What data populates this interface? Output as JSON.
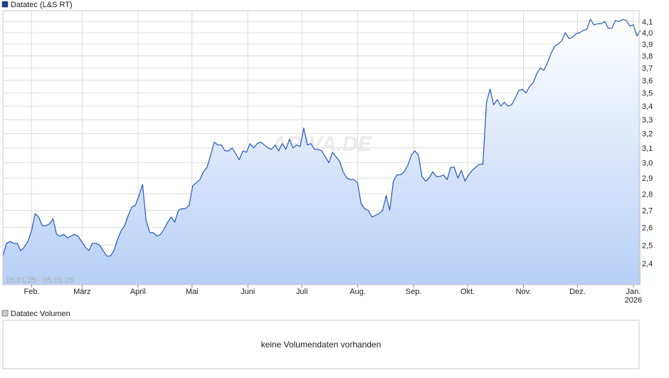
{
  "chart_data": {
    "type": "line",
    "legend": "Datatec (L&S RT)",
    "color": "#2456b8",
    "log_scale": true,
    "grid": true,
    "range_label": "16.01.25 - 05.01.26",
    "watermark": "ARIVA.DE",
    "xlim": [
      "2025-01-16",
      "2026-01-05"
    ],
    "xticks": [
      {
        "value": "2025-02",
        "label": "Feb."
      },
      {
        "value": "2025-03",
        "label": "März"
      },
      {
        "value": "2025-04",
        "label": "April"
      },
      {
        "value": "2025-05",
        "label": "Mai"
      },
      {
        "value": "2025-06",
        "label": "Juni"
      },
      {
        "value": "2025-07",
        "label": "Juli"
      },
      {
        "value": "2025-08",
        "label": "Aug."
      },
      {
        "value": "2025-09",
        "label": "Sep."
      },
      {
        "value": "2025-10",
        "label": "Okt."
      },
      {
        "value": "2025-11",
        "label": "Nov."
      },
      {
        "value": "2025-12",
        "label": "Dez."
      },
      {
        "value": "2026-01",
        "label": "Jan."
      }
    ],
    "year_label": "2026",
    "ylim": [
      2.29,
      4.2
    ],
    "yticks": [
      {
        "value": 2.4,
        "label": "2,4"
      },
      {
        "value": 2.5,
        "label": "2,5"
      },
      {
        "value": 2.6,
        "label": "2,6"
      },
      {
        "value": 2.7,
        "label": "2,7"
      },
      {
        "value": 2.8,
        "label": "2,8"
      },
      {
        "value": 2.9,
        "label": "2,9"
      },
      {
        "value": 3.0,
        "label": "3,0"
      },
      {
        "value": 3.1,
        "label": "3,1"
      },
      {
        "value": 3.2,
        "label": "3,2"
      },
      {
        "value": 3.3,
        "label": "3,3"
      },
      {
        "value": 3.4,
        "label": "3,4"
      },
      {
        "value": 3.5,
        "label": "3,5"
      },
      {
        "value": 3.6,
        "label": "3,6"
      },
      {
        "value": 3.7,
        "label": "3,7"
      },
      {
        "value": 3.8,
        "label": "3,8"
      },
      {
        "value": 3.9,
        "label": "3,9"
      },
      {
        "value": 4.0,
        "label": "4,0"
      },
      {
        "value": 4.1,
        "label": "4,1"
      }
    ],
    "values": [
      2.44,
      2.51,
      2.52,
      2.51,
      2.51,
      2.47,
      2.49,
      2.52,
      2.58,
      2.68,
      2.66,
      2.61,
      2.61,
      2.62,
      2.65,
      2.56,
      2.55,
      2.56,
      2.54,
      2.55,
      2.56,
      2.55,
      2.52,
      2.49,
      2.47,
      2.51,
      2.51,
      2.5,
      2.47,
      2.44,
      2.44,
      2.47,
      2.53,
      2.58,
      2.61,
      2.67,
      2.72,
      2.73,
      2.79,
      2.86,
      2.64,
      2.57,
      2.57,
      2.55,
      2.56,
      2.59,
      2.63,
      2.66,
      2.63,
      2.7,
      2.71,
      2.71,
      2.73,
      2.85,
      2.87,
      2.89,
      2.94,
      2.97,
      3.05,
      3.14,
      3.12,
      3.12,
      3.08,
      3.08,
      3.1,
      3.06,
      3.02,
      3.08,
      3.07,
      3.13,
      3.1,
      3.13,
      3.14,
      3.12,
      3.1,
      3.09,
      3.12,
      3.08,
      3.13,
      3.09,
      3.16,
      3.1,
      3.12,
      3.11,
      3.24,
      3.12,
      3.13,
      3.09,
      3.09,
      3.08,
      3.04,
      3.0,
      3.07,
      3.04,
      3.01,
      2.94,
      2.9,
      2.89,
      2.89,
      2.87,
      2.74,
      2.71,
      2.7,
      2.66,
      2.67,
      2.68,
      2.7,
      2.79,
      2.7,
      2.88,
      2.92,
      2.92,
      2.94,
      2.98,
      3.05,
      3.08,
      3.05,
      2.91,
      2.88,
      2.9,
      2.94,
      2.91,
      2.91,
      2.92,
      2.89,
      2.97,
      2.97,
      2.9,
      2.95,
      2.88,
      2.92,
      2.95,
      2.97,
      2.99,
      2.99,
      3.43,
      3.53,
      3.41,
      3.45,
      3.4,
      3.43,
      3.4,
      3.41,
      3.46,
      3.52,
      3.53,
      3.5,
      3.55,
      3.58,
      3.65,
      3.7,
      3.68,
      3.74,
      3.82,
      3.88,
      3.9,
      3.93,
      4.0,
      3.95,
      3.96,
      3.99,
      4.0,
      4.02,
      4.03,
      4.12,
      4.07,
      4.08,
      4.08,
      4.1,
      4.04,
      4.04,
      4.11,
      4.1,
      4.12,
      4.11,
      4.06,
      4.07,
      3.97,
      4.02
    ]
  },
  "volume_panel": {
    "legend": "Datatec Volumen",
    "message": "keine Volumendaten vorhanden"
  }
}
